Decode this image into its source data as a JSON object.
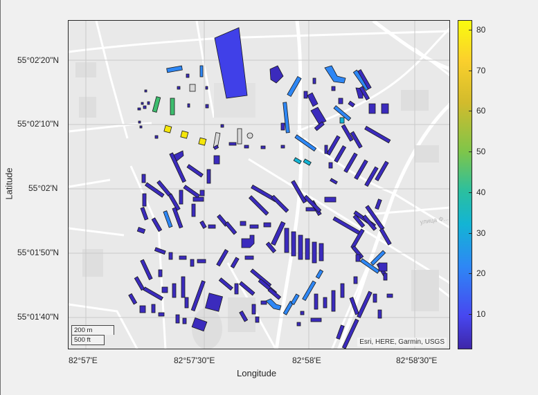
{
  "axes": {
    "xlabel": "Longitude",
    "ylabel": "Latitude",
    "xticks": [
      "82°57'E",
      "82°57'30\"E",
      "82°58'E",
      "82°58'30\"E"
    ],
    "yticks": [
      "55°02'20\"N",
      "55°02'10\"N",
      "55°02'N",
      "55°01'50\"N",
      "55°01'40\"N"
    ],
    "grid": true
  },
  "map": {
    "basemap": "streets-light",
    "attribution": "Esri, HERE, Garmin, USGS",
    "scalebar": {
      "metric": "200 m",
      "imperial": "500 ft"
    },
    "street_label": "улица Ф..."
  },
  "colorbar": {
    "ticks": [
      "80",
      "70",
      "60",
      "50",
      "40",
      "30",
      "20",
      "10"
    ],
    "range": [
      1,
      83
    ],
    "colormap": "parula"
  },
  "colors": {
    "low": "#3b2bbd",
    "mid_blue": "#2e87f5",
    "cyan": "#13b4d4",
    "green": "#3dbd6e",
    "yellow": "#f5e60a",
    "grey_nodata": "#d9d9d9"
  }
}
